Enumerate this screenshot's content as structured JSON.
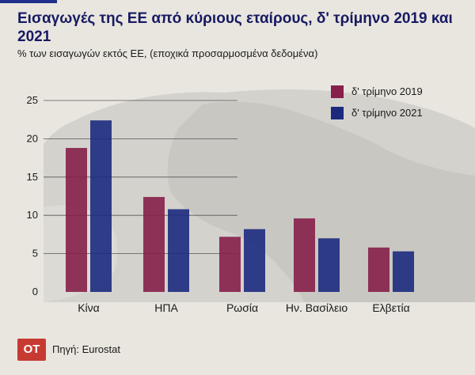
{
  "header": {
    "title": "Εισαγωγές της ΕΕ από κύριους εταίρους, δ' τρίμηνο 2019 και 2021",
    "subtitle": "% των εισαγωγών εκτός ΕΕ, (εποχικά προσαρμοσμένα δεδομένα)"
  },
  "footer": {
    "logo": "OT",
    "source": "Πηγή: Eurostat"
  },
  "colors": {
    "series_2019": "#861f4a",
    "series_2021": "#1c2a7e"
  },
  "chart_data": {
    "type": "bar",
    "categories": [
      "Κίνα",
      "ΗΠΑ",
      "Ρωσία",
      "Ην. Βασίλειο",
      "Ελβετία"
    ],
    "series": [
      {
        "name": "δ' τρίμηνο 2019",
        "values": [
          18.8,
          12.4,
          7.2,
          9.6,
          5.8
        ]
      },
      {
        "name": "δ' τρίμηνο 2021",
        "values": [
          22.4,
          10.8,
          8.2,
          7.0,
          5.3
        ]
      }
    ],
    "y_ticks": [
      "0",
      "5",
      "10",
      "15",
      "20",
      "25"
    ],
    "ylim": [
      0,
      25
    ],
    "xlabel": "",
    "ylabel": "",
    "grid": true,
    "legend_position": "top-right"
  }
}
